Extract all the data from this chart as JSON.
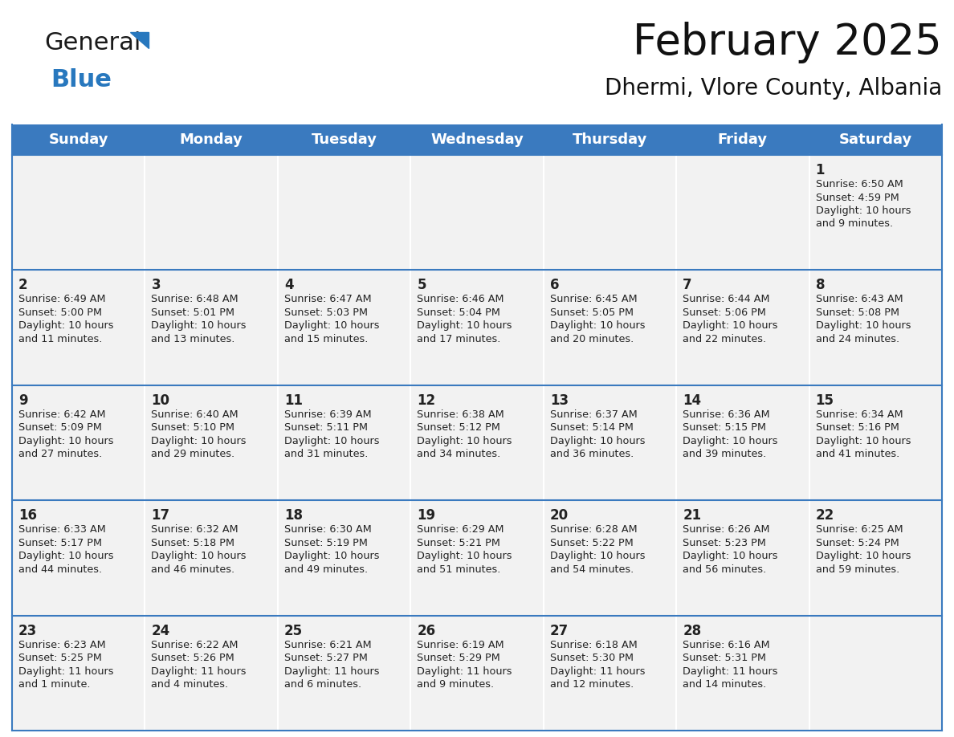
{
  "title": "February 2025",
  "subtitle": "Dhermi, Vlore County, Albania",
  "header_color": "#3a7abf",
  "header_text_color": "#ffffff",
  "cell_bg": "#f2f2f2",
  "row_line_color": "#3a7abf",
  "col_line_color": "#ffffff",
  "days_of_week": [
    "Sunday",
    "Monday",
    "Tuesday",
    "Wednesday",
    "Thursday",
    "Friday",
    "Saturday"
  ],
  "title_fontsize": 38,
  "subtitle_fontsize": 20,
  "header_fontsize": 13,
  "day_num_fontsize": 12,
  "info_fontsize": 9.2,
  "logo_general_color": "#1a1a1a",
  "logo_blue_color": "#2878be",
  "weeks": [
    [
      null,
      null,
      null,
      null,
      null,
      null,
      1
    ],
    [
      2,
      3,
      4,
      5,
      6,
      7,
      8
    ],
    [
      9,
      10,
      11,
      12,
      13,
      14,
      15
    ],
    [
      16,
      17,
      18,
      19,
      20,
      21,
      22
    ],
    [
      23,
      24,
      25,
      26,
      27,
      28,
      null
    ]
  ],
  "day_data": {
    "1": {
      "sunrise": "6:50 AM",
      "sunset": "4:59 PM",
      "daylight": "10 hours\nand 9 minutes."
    },
    "2": {
      "sunrise": "6:49 AM",
      "sunset": "5:00 PM",
      "daylight": "10 hours\nand 11 minutes."
    },
    "3": {
      "sunrise": "6:48 AM",
      "sunset": "5:01 PM",
      "daylight": "10 hours\nand 13 minutes."
    },
    "4": {
      "sunrise": "6:47 AM",
      "sunset": "5:03 PM",
      "daylight": "10 hours\nand 15 minutes."
    },
    "5": {
      "sunrise": "6:46 AM",
      "sunset": "5:04 PM",
      "daylight": "10 hours\nand 17 minutes."
    },
    "6": {
      "sunrise": "6:45 AM",
      "sunset": "5:05 PM",
      "daylight": "10 hours\nand 20 minutes."
    },
    "7": {
      "sunrise": "6:44 AM",
      "sunset": "5:06 PM",
      "daylight": "10 hours\nand 22 minutes."
    },
    "8": {
      "sunrise": "6:43 AM",
      "sunset": "5:08 PM",
      "daylight": "10 hours\nand 24 minutes."
    },
    "9": {
      "sunrise": "6:42 AM",
      "sunset": "5:09 PM",
      "daylight": "10 hours\nand 27 minutes."
    },
    "10": {
      "sunrise": "6:40 AM",
      "sunset": "5:10 PM",
      "daylight": "10 hours\nand 29 minutes."
    },
    "11": {
      "sunrise": "6:39 AM",
      "sunset": "5:11 PM",
      "daylight": "10 hours\nand 31 minutes."
    },
    "12": {
      "sunrise": "6:38 AM",
      "sunset": "5:12 PM",
      "daylight": "10 hours\nand 34 minutes."
    },
    "13": {
      "sunrise": "6:37 AM",
      "sunset": "5:14 PM",
      "daylight": "10 hours\nand 36 minutes."
    },
    "14": {
      "sunrise": "6:36 AM",
      "sunset": "5:15 PM",
      "daylight": "10 hours\nand 39 minutes."
    },
    "15": {
      "sunrise": "6:34 AM",
      "sunset": "5:16 PM",
      "daylight": "10 hours\nand 41 minutes."
    },
    "16": {
      "sunrise": "6:33 AM",
      "sunset": "5:17 PM",
      "daylight": "10 hours\nand 44 minutes."
    },
    "17": {
      "sunrise": "6:32 AM",
      "sunset": "5:18 PM",
      "daylight": "10 hours\nand 46 minutes."
    },
    "18": {
      "sunrise": "6:30 AM",
      "sunset": "5:19 PM",
      "daylight": "10 hours\nand 49 minutes."
    },
    "19": {
      "sunrise": "6:29 AM",
      "sunset": "5:21 PM",
      "daylight": "10 hours\nand 51 minutes."
    },
    "20": {
      "sunrise": "6:28 AM",
      "sunset": "5:22 PM",
      "daylight": "10 hours\nand 54 minutes."
    },
    "21": {
      "sunrise": "6:26 AM",
      "sunset": "5:23 PM",
      "daylight": "10 hours\nand 56 minutes."
    },
    "22": {
      "sunrise": "6:25 AM",
      "sunset": "5:24 PM",
      "daylight": "10 hours\nand 59 minutes."
    },
    "23": {
      "sunrise": "6:23 AM",
      "sunset": "5:25 PM",
      "daylight": "11 hours\nand 1 minute."
    },
    "24": {
      "sunrise": "6:22 AM",
      "sunset": "5:26 PM",
      "daylight": "11 hours\nand 4 minutes."
    },
    "25": {
      "sunrise": "6:21 AM",
      "sunset": "5:27 PM",
      "daylight": "11 hours\nand 6 minutes."
    },
    "26": {
      "sunrise": "6:19 AM",
      "sunset": "5:29 PM",
      "daylight": "11 hours\nand 9 minutes."
    },
    "27": {
      "sunrise": "6:18 AM",
      "sunset": "5:30 PM",
      "daylight": "11 hours\nand 12 minutes."
    },
    "28": {
      "sunrise": "6:16 AM",
      "sunset": "5:31 PM",
      "daylight": "11 hours\nand 14 minutes."
    }
  }
}
